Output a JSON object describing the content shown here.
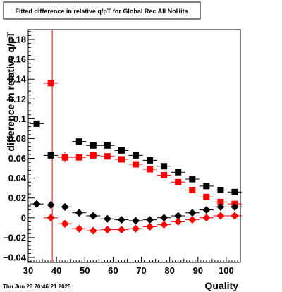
{
  "chart_data": {
    "type": "scatter",
    "title": "Fitted difference in relative q/pT for Global Rec All NoHits",
    "xlabel": "Quality",
    "ylabel": "difference in relative q/pT",
    "footer": "Thu Jun 26 20:46:21 2025",
    "xlim": [
      30,
      105
    ],
    "ylim": [
      -0.045,
      0.19
    ],
    "x_ticks": [
      30,
      40,
      50,
      60,
      70,
      80,
      90,
      100
    ],
    "y_ticks": [
      -0.04,
      -0.02,
      0,
      0.02,
      0.04,
      0.06,
      0.08,
      0.1,
      0.12,
      0.14,
      0.16,
      0.18
    ],
    "y_tick_labels": [
      "−0.04",
      "−0.02",
      "0",
      "0.02",
      "0.04",
      "0.06",
      "0.08",
      "0.1",
      "0.12",
      "0.14",
      "0.16",
      "0.18"
    ],
    "x_tick_labels": [
      "30",
      "40",
      "50",
      "60",
      "70",
      "80",
      "90",
      "100"
    ],
    "grid": false,
    "vertical_line": {
      "x": 38.5,
      "color": "#ff0000"
    },
    "series": [
      {
        "marker": "square",
        "color": "#000000",
        "x": [
          33,
          38,
          48,
          53,
          58,
          63,
          68,
          73,
          78,
          83,
          88,
          93,
          98,
          103
        ],
        "y": [
          0.095,
          0.063,
          0.077,
          0.073,
          0.073,
          0.068,
          0.063,
          0.058,
          0.052,
          0.046,
          0.039,
          0.032,
          0.028,
          0.026
        ],
        "yerr": [
          0,
          0,
          0,
          0,
          0,
          0,
          0,
          0,
          0,
          0,
          0,
          0,
          0,
          0
        ]
      },
      {
        "marker": "square",
        "color": "#ff0000",
        "x": [
          38,
          43,
          48,
          53,
          58,
          63,
          68,
          73,
          78,
          83,
          88,
          93,
          98,
          103
        ],
        "y": [
          0.136,
          0.061,
          0.061,
          0.063,
          0.062,
          0.059,
          0.054,
          0.049,
          0.043,
          0.036,
          0.028,
          0.021,
          0.016,
          0.014
        ],
        "yerr": [
          0,
          0.005,
          0,
          0,
          0,
          0,
          0,
          0,
          0,
          0,
          0,
          0,
          0,
          0
        ]
      },
      {
        "marker": "diamond",
        "color": "#000000",
        "x": [
          33,
          38,
          43,
          48,
          53,
          58,
          63,
          68,
          73,
          78,
          83,
          88,
          93,
          98,
          103
        ],
        "y": [
          0.014,
          0.013,
          0.011,
          0.005,
          0.002,
          -0.001,
          -0.002,
          -0.003,
          -0.002,
          0.0,
          0.002,
          0.005,
          0.008,
          0.011,
          0.011
        ],
        "yerr": [
          0,
          0,
          0,
          0,
          0,
          0,
          0,
          0,
          0,
          0,
          0,
          0,
          0,
          0,
          0
        ]
      },
      {
        "marker": "diamond",
        "color": "#ff0000",
        "x": [
          38,
          43,
          48,
          53,
          58,
          63,
          68,
          73,
          78,
          83,
          88,
          93,
          98,
          103
        ],
        "y": [
          0.0,
          -0.006,
          -0.011,
          -0.013,
          -0.012,
          -0.012,
          -0.011,
          -0.009,
          -0.007,
          -0.004,
          -0.002,
          0.0,
          0.002,
          0.002
        ],
        "yerr": [
          0,
          0.004,
          0,
          0,
          0,
          0,
          0,
          0,
          0,
          0,
          0,
          0,
          0,
          0
        ]
      }
    ]
  }
}
